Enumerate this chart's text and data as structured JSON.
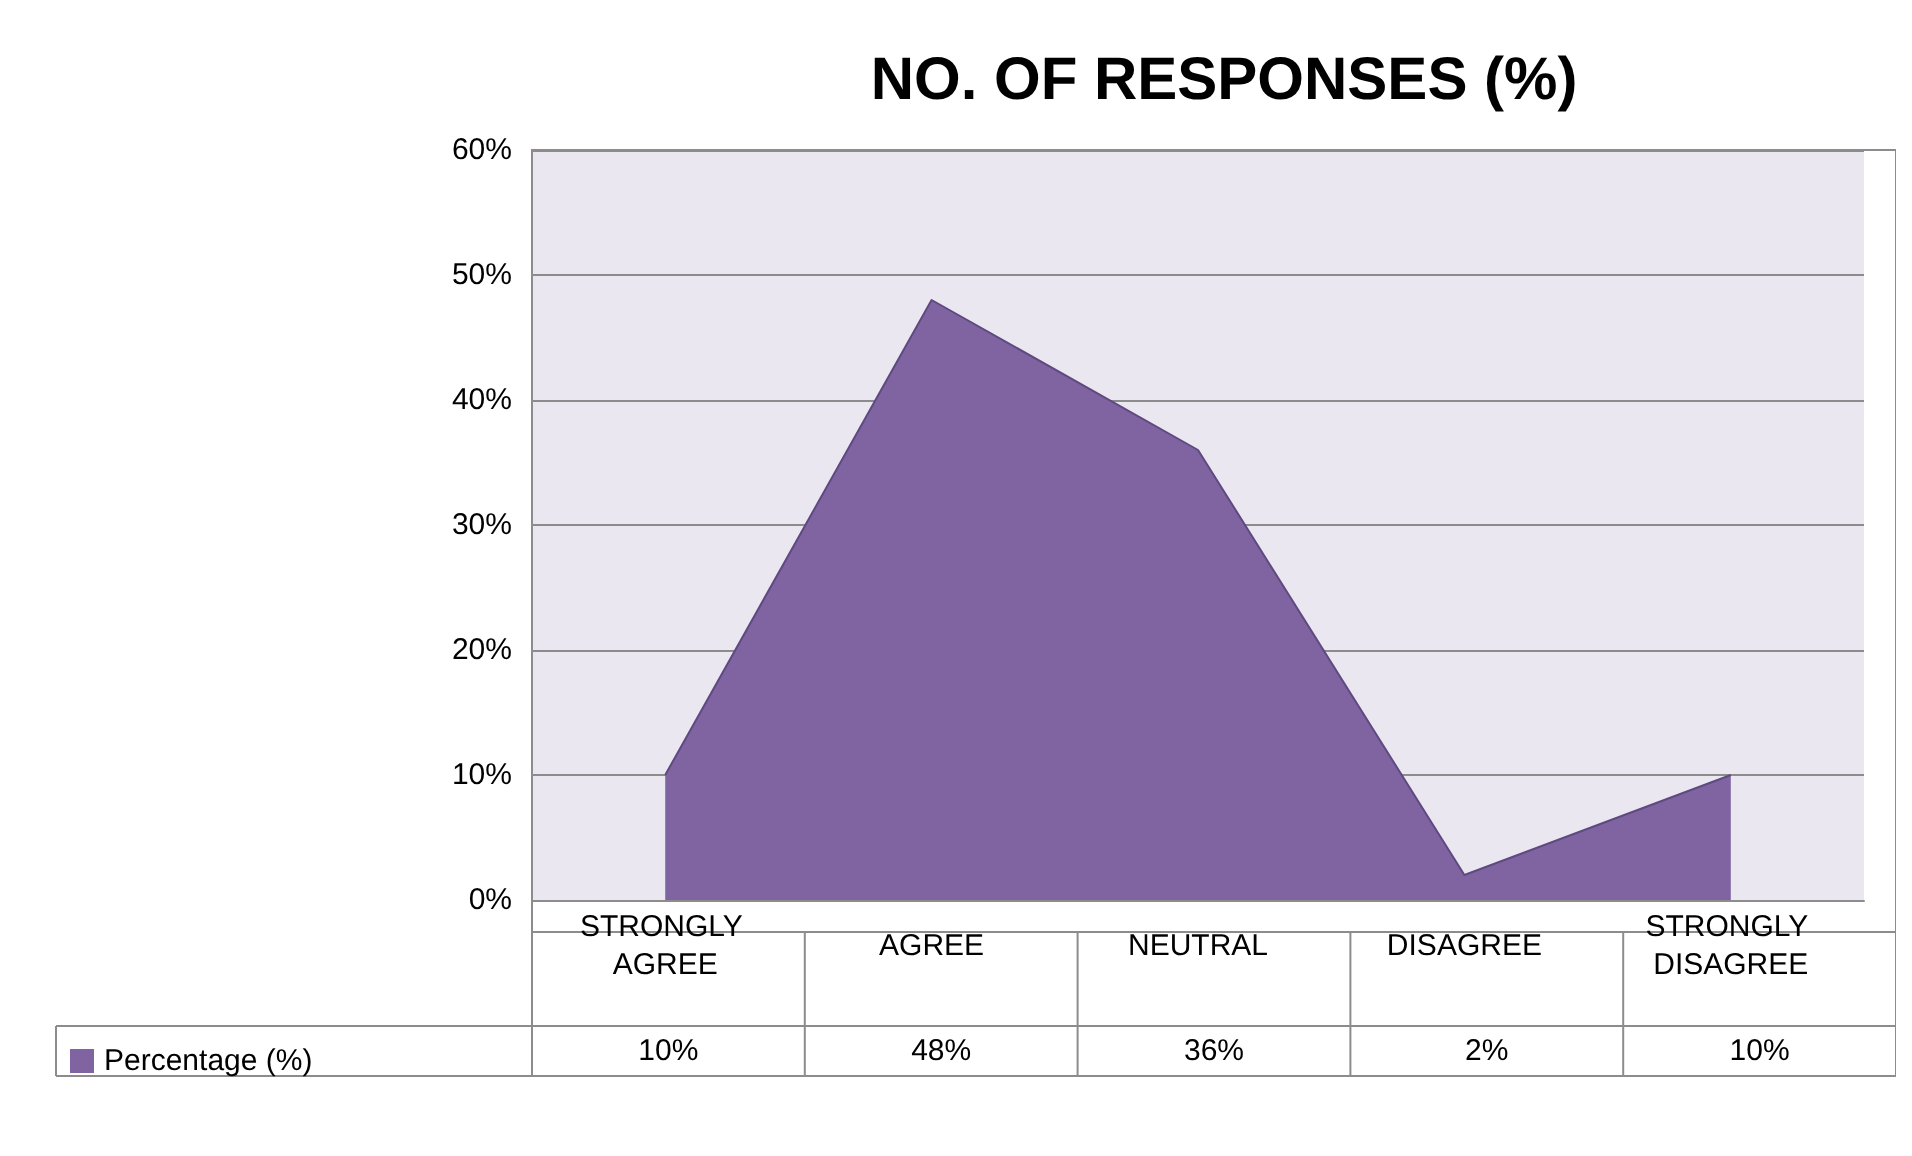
{
  "chart_data": {
    "type": "area",
    "title": "NO. OF RESPONSES (%)",
    "categories": [
      "STRONGLY AGREE",
      "AGREE",
      "NEUTRAL",
      "DISAGREE",
      "STRONGLY DISAGREE"
    ],
    "series": [
      {
        "name": "Percentage (%)",
        "color": "#8064a2",
        "values": [
          10,
          48,
          36,
          2,
          10
        ],
        "value_labels": [
          "10%",
          "48%",
          "36%",
          "2%",
          "10%"
        ]
      }
    ],
    "ylim": [
      0,
      60
    ],
    "yticks": [
      {
        "value": 0,
        "label": "0%"
      },
      {
        "value": 10,
        "label": "10%"
      },
      {
        "value": 20,
        "label": "20%"
      },
      {
        "value": 30,
        "label": "30%"
      },
      {
        "value": 40,
        "label": "40%"
      },
      {
        "value": 50,
        "label": "50%"
      },
      {
        "value": 60,
        "label": "60%"
      }
    ],
    "grid": "y",
    "legend": "bottom"
  }
}
